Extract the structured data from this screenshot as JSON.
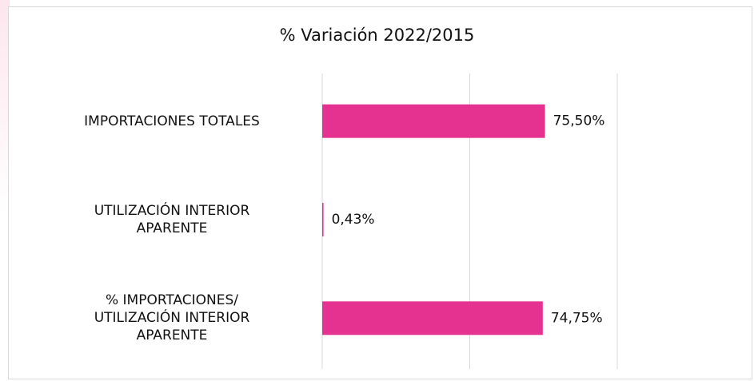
{
  "chart_data": {
    "type": "hbar",
    "title": "% Variación 2022/2015",
    "categories": [
      "IMPORTACIONES TOTALES",
      "UTILIZACIÓN INTERIOR\nAPARENTE",
      "% IMPORTACIONES/\nUTILIZACIÓN INTERIOR\nAPARENTE"
    ],
    "values": [
      75.5,
      0.43,
      74.75
    ],
    "value_labels": [
      "75,50%",
      "0,43%",
      "74,75%"
    ],
    "color": "#e5318f",
    "xlim": [
      0,
      100
    ],
    "xticks": [
      0,
      50,
      100
    ],
    "grid": true
  }
}
